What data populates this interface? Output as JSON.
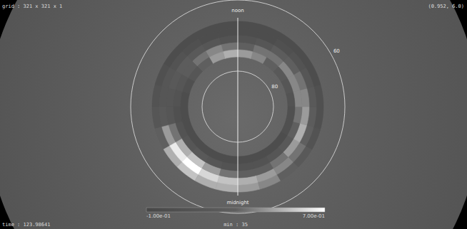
{
  "texts": {
    "grid_info": "grid : 321 x 321 x 1",
    "view_info": "(0.952, 6.0)",
    "time": "time : 123.98641",
    "min": "min : 35"
  },
  "chart_data": {
    "type": "polar_heatmap",
    "angle_axis": {
      "lim": [
        0,
        24
      ],
      "ticks": [
        {
          "value": 0,
          "label": "midnight"
        },
        {
          "value": 12,
          "label": "noon"
        }
      ]
    },
    "radius_axis": {
      "lim": [
        60,
        90
      ],
      "ticks": [
        80,
        60
      ]
    },
    "mlt_bins": [
      0,
      1,
      2,
      3,
      4,
      5,
      6,
      7,
      8,
      9,
      10,
      11,
      12,
      13,
      14,
      15,
      16,
      17,
      18,
      19,
      20,
      21,
      22,
      23,
      24
    ],
    "lat_bins": [
      66,
      68,
      70,
      72,
      74,
      76
    ],
    "values": [
      [
        0.45,
        0.5,
        0.3,
        0.1,
        0.0
      ],
      [
        0.4,
        0.45,
        0.3,
        0.1,
        0.0
      ],
      [
        0.3,
        0.4,
        0.35,
        0.15,
        0.0
      ],
      [
        0.2,
        0.35,
        0.45,
        0.2,
        0.0
      ],
      [
        0.1,
        0.3,
        0.5,
        0.3,
        0.05
      ],
      [
        0.05,
        0.25,
        0.45,
        0.35,
        0.05
      ],
      [
        0.05,
        0.2,
        0.4,
        0.4,
        0.1
      ],
      [
        0.0,
        0.15,
        0.35,
        0.4,
        0.15
      ],
      [
        0.0,
        0.1,
        0.3,
        0.4,
        0.2
      ],
      [
        0.0,
        0.05,
        0.25,
        0.35,
        0.3
      ],
      [
        0.0,
        0.0,
        0.15,
        0.35,
        0.4
      ],
      [
        0.0,
        0.0,
        0.1,
        0.3,
        0.45
      ],
      [
        0.0,
        0.0,
        0.1,
        0.35,
        0.5
      ],
      [
        0.0,
        0.0,
        0.15,
        0.4,
        0.45
      ],
      [
        0.0,
        0.05,
        0.2,
        0.35,
        0.3
      ],
      [
        0.0,
        0.1,
        0.25,
        0.25,
        0.15
      ],
      [
        0.05,
        0.15,
        0.2,
        0.15,
        0.05
      ],
      [
        0.1,
        0.15,
        0.15,
        0.1,
        0.0
      ],
      [
        0.15,
        0.2,
        0.15,
        0.05,
        0.0
      ],
      [
        0.3,
        0.45,
        0.35,
        0.1,
        0.0
      ],
      [
        0.5,
        0.65,
        0.5,
        0.15,
        0.0
      ],
      [
        0.55,
        0.7,
        0.55,
        0.2,
        0.0
      ],
      [
        0.5,
        0.6,
        0.45,
        0.15,
        0.0
      ],
      [
        0.5,
        0.55,
        0.35,
        0.1,
        0.0
      ]
    ],
    "colorbar": {
      "range": [
        -0.1,
        0.7
      ],
      "ticks": [
        {
          "value": -0.1,
          "label": "-1.00e-01"
        },
        {
          "value": 0.7,
          "label": "7.00e-01"
        }
      ]
    }
  }
}
